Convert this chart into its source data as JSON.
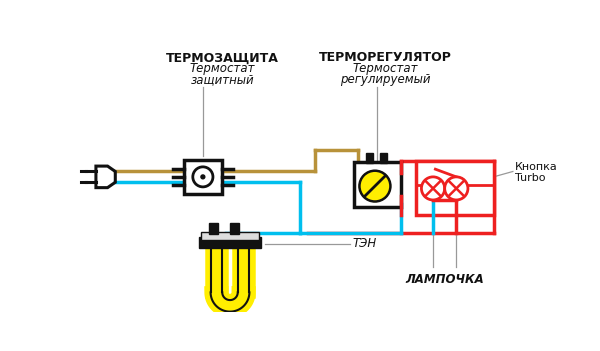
{
  "bg_color": "#ffffff",
  "brown_color": "#b8923a",
  "blue_color": "#00bfee",
  "red_color": "#ee2020",
  "black_color": "#111111",
  "yellow_color": "#ffee00",
  "gray_color": "#999999",
  "darkbrown_color": "#5a3010",
  "line_width": 2.5,
  "label_thermo1": [
    "ТЕРМОЗАЩИТА",
    "Термостат",
    "защитный"
  ],
  "label_thermo2": [
    "ТЕРМОРЕГУЛЯТОР",
    "Термостат",
    "регулируемый"
  ],
  "label_ten": "ТЭН",
  "label_lamp": "ЛАМПОЧКА",
  "label_turbo1": "Кнопка",
  "label_turbo2": "Turbo"
}
